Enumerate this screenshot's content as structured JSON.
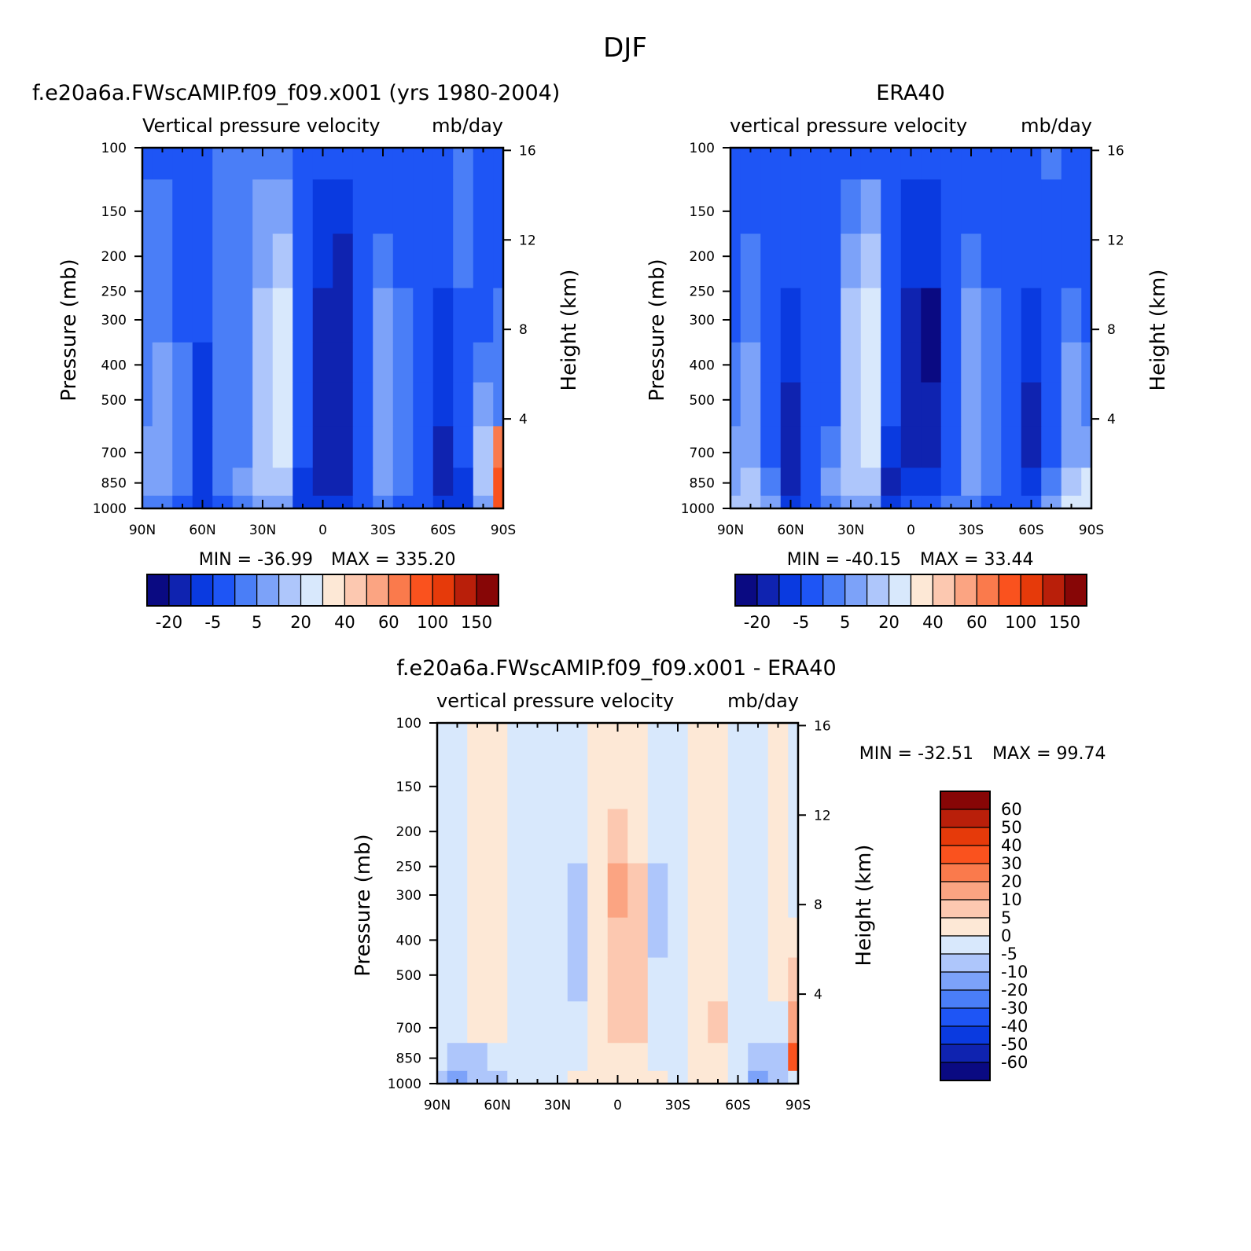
{
  "figure": {
    "title": "DJF"
  },
  "palette": {
    "full": [
      "#0a0a82",
      "#0f23b0",
      "#0a3ae0",
      "#1e55f5",
      "#4a7ef7",
      "#7ca2f9",
      "#aec6fb",
      "#d8e8fc",
      "#fde8d6",
      "#fcc8b0",
      "#fba482",
      "#fa7a4c",
      "#fa521e",
      "#e63a0a",
      "#b91f0a",
      "#870606"
    ],
    "diff": [
      "#0a0a82",
      "#0f23b0",
      "#0a3ae0",
      "#1e55f5",
      "#4a7ef7",
      "#7ca2f9",
      "#aec6fb",
      "#d8e8fc",
      "#fde8d6",
      "#fcc8b0",
      "#fba482",
      "#fa7a4c",
      "#fa521e",
      "#e63a0a",
      "#b91f0a",
      "#870606"
    ]
  },
  "chart_data": [
    {
      "type": "heatmap",
      "id": "model",
      "title": "f.e20a6a.FWscAMIP.f09_f09.x001 (yrs 1980-2004)",
      "subtitle": "Vertical pressure velocity",
      "units": "mb/day",
      "xlabel": "",
      "ylabel": "Pressure (mb)",
      "y2label": "Height (km)",
      "x_ticks": [
        "90N",
        "60N",
        "30N",
        "0",
        "30S",
        "60S",
        "90S"
      ],
      "x_range": [
        90,
        -90
      ],
      "y_ticks": [
        100,
        150,
        200,
        250,
        300,
        400,
        500,
        700,
        850,
        1000
      ],
      "y_scale": "log",
      "y_range": [
        1000,
        100
      ],
      "y2_ticks": [
        16,
        12,
        8,
        4
      ],
      "min_label": "MIN = -36.99",
      "max_label": "MAX = 335.20",
      "colorbar_orientation": "horizontal",
      "colorbar_labels": [
        "-20",
        "-5",
        "5",
        "20",
        "40",
        "60",
        "100",
        "150"
      ],
      "latitudes": [
        90,
        80,
        70,
        60,
        50,
        40,
        30,
        20,
        10,
        0,
        -10,
        -20,
        -30,
        -40,
        -50,
        -60,
        -70,
        -80,
        -90
      ],
      "pressure_levels": [
        100,
        150,
        200,
        300,
        400,
        500,
        700,
        850,
        1000
      ],
      "level_index_rows": [
        [
          3,
          3,
          3,
          3,
          4,
          4,
          4,
          4,
          3,
          3,
          3,
          3,
          3,
          3,
          3,
          3,
          4,
          3,
          3
        ],
        [
          4,
          4,
          3,
          3,
          4,
          4,
          5,
          5,
          3,
          2,
          2,
          3,
          3,
          3,
          3,
          3,
          4,
          3,
          3
        ],
        [
          4,
          4,
          3,
          3,
          4,
          4,
          5,
          6,
          3,
          2,
          1,
          3,
          4,
          3,
          3,
          3,
          4,
          3,
          3
        ],
        [
          4,
          4,
          3,
          3,
          4,
          4,
          6,
          7,
          3,
          1,
          1,
          3,
          5,
          4,
          3,
          2,
          3,
          3,
          4
        ],
        [
          4,
          5,
          4,
          2,
          4,
          4,
          6,
          7,
          3,
          1,
          1,
          3,
          5,
          4,
          3,
          2,
          3,
          4,
          4
        ],
        [
          4,
          5,
          4,
          2,
          4,
          4,
          6,
          7,
          3,
          1,
          1,
          3,
          5,
          4,
          3,
          2,
          3,
          5,
          4
        ],
        [
          5,
          5,
          4,
          2,
          4,
          4,
          6,
          7,
          3,
          1,
          1,
          3,
          5,
          4,
          3,
          1,
          3,
          6,
          11
        ],
        [
          5,
          5,
          4,
          2,
          4,
          5,
          6,
          6,
          2,
          1,
          1,
          3,
          5,
          4,
          3,
          1,
          2,
          6,
          12
        ],
        [
          4,
          4,
          3,
          2,
          3,
          4,
          5,
          5,
          2,
          2,
          2,
          3,
          4,
          3,
          3,
          2,
          2,
          5,
          12
        ]
      ]
    },
    {
      "type": "heatmap",
      "id": "obs",
      "title": "ERA40",
      "subtitle": "vertical pressure velocity",
      "units": "mb/day",
      "xlabel": "",
      "ylabel": "Pressure (mb)",
      "y2label": "Height (km)",
      "x_ticks": [
        "90N",
        "60N",
        "30N",
        "0",
        "30S",
        "60S",
        "90S"
      ],
      "x_range": [
        90,
        -90
      ],
      "y_ticks": [
        100,
        150,
        200,
        250,
        300,
        400,
        500,
        700,
        850,
        1000
      ],
      "y_scale": "log",
      "y_range": [
        1000,
        100
      ],
      "y2_ticks": [
        16,
        12,
        8,
        4
      ],
      "min_label": "MIN = -40.15",
      "max_label": "MAX = 33.44",
      "colorbar_orientation": "horizontal",
      "colorbar_labels": [
        "-20",
        "-5",
        "5",
        "20",
        "40",
        "60",
        "100",
        "150"
      ],
      "latitudes": [
        90,
        80,
        70,
        60,
        50,
        40,
        30,
        20,
        10,
        0,
        -10,
        -20,
        -30,
        -40,
        -50,
        -60,
        -70,
        -80,
        -90
      ],
      "pressure_levels": [
        100,
        150,
        200,
        300,
        400,
        500,
        700,
        850,
        1000
      ],
      "level_index_rows": [
        [
          3,
          3,
          3,
          3,
          3,
          3,
          3,
          3,
          3,
          3,
          3,
          3,
          3,
          3,
          3,
          3,
          4,
          3,
          3
        ],
        [
          3,
          3,
          3,
          3,
          3,
          3,
          4,
          5,
          3,
          2,
          2,
          3,
          3,
          3,
          3,
          3,
          3,
          3,
          3
        ],
        [
          3,
          4,
          3,
          3,
          3,
          3,
          5,
          6,
          3,
          2,
          2,
          3,
          4,
          3,
          3,
          3,
          3,
          3,
          3
        ],
        [
          3,
          4,
          3,
          2,
          3,
          3,
          6,
          7,
          3,
          1,
          0,
          3,
          5,
          4,
          3,
          2,
          3,
          4,
          3
        ],
        [
          4,
          5,
          3,
          2,
          3,
          3,
          6,
          7,
          3,
          1,
          0,
          3,
          5,
          4,
          3,
          2,
          3,
          5,
          4
        ],
        [
          4,
          5,
          3,
          1,
          3,
          3,
          6,
          7,
          3,
          1,
          1,
          3,
          5,
          4,
          3,
          1,
          3,
          5,
          4
        ],
        [
          5,
          5,
          3,
          1,
          3,
          4,
          6,
          7,
          2,
          1,
          1,
          3,
          5,
          4,
          3,
          1,
          3,
          5,
          5
        ],
        [
          5,
          6,
          4,
          1,
          3,
          5,
          6,
          6,
          1,
          2,
          2,
          3,
          5,
          4,
          3,
          2,
          4,
          6,
          7
        ],
        [
          6,
          6,
          5,
          2,
          3,
          4,
          5,
          5,
          2,
          3,
          3,
          4,
          4,
          3,
          3,
          3,
          5,
          7,
          7
        ]
      ]
    },
    {
      "type": "heatmap",
      "id": "diff",
      "title": "f.e20a6a.FWscAMIP.f09_f09.x001 - ERA40",
      "subtitle": "vertical pressure velocity",
      "units": "mb/day",
      "xlabel": "",
      "ylabel": "Pressure (mb)",
      "y2label": "Height (km)",
      "x_ticks": [
        "90N",
        "60N",
        "30N",
        "0",
        "30S",
        "60S",
        "90S"
      ],
      "x_range": [
        90,
        -90
      ],
      "y_ticks": [
        100,
        150,
        200,
        250,
        300,
        400,
        500,
        700,
        850,
        1000
      ],
      "y_scale": "log",
      "y_range": [
        1000,
        100
      ],
      "y2_ticks": [
        16,
        12,
        8,
        4
      ],
      "min_label": "MIN = -32.51",
      "max_label": "MAX = 99.74",
      "colorbar_orientation": "vertical",
      "colorbar_labels": [
        "60",
        "50",
        "40",
        "30",
        "20",
        "10",
        "5",
        "0",
        "-5",
        "-10",
        "-20",
        "-30",
        "-40",
        "-50",
        "-60"
      ],
      "latitudes": [
        90,
        80,
        70,
        60,
        50,
        40,
        30,
        20,
        10,
        0,
        -10,
        -20,
        -30,
        -40,
        -50,
        -60,
        -70,
        -80,
        -90
      ],
      "pressure_levels": [
        100,
        150,
        200,
        300,
        400,
        500,
        700,
        850,
        1000
      ],
      "level_index_rows": [
        [
          7,
          7,
          8,
          8,
          7,
          7,
          7,
          7,
          8,
          8,
          8,
          7,
          7,
          8,
          8,
          7,
          7,
          8,
          7
        ],
        [
          7,
          7,
          8,
          8,
          7,
          7,
          7,
          7,
          8,
          8,
          8,
          7,
          7,
          8,
          8,
          7,
          7,
          8,
          7
        ],
        [
          7,
          7,
          8,
          8,
          7,
          7,
          7,
          7,
          8,
          9,
          8,
          7,
          7,
          8,
          8,
          7,
          7,
          8,
          7
        ],
        [
          7,
          7,
          8,
          8,
          7,
          7,
          7,
          6,
          8,
          10,
          9,
          6,
          7,
          8,
          8,
          7,
          7,
          8,
          7
        ],
        [
          7,
          7,
          8,
          8,
          7,
          7,
          7,
          6,
          8,
          9,
          9,
          6,
          7,
          8,
          8,
          7,
          7,
          8,
          8
        ],
        [
          7,
          7,
          8,
          8,
          7,
          7,
          7,
          6,
          8,
          9,
          9,
          7,
          7,
          8,
          8,
          7,
          7,
          8,
          9
        ],
        [
          7,
          7,
          8,
          8,
          7,
          7,
          7,
          7,
          8,
          9,
          9,
          7,
          7,
          8,
          9,
          7,
          7,
          7,
          10
        ],
        [
          7,
          6,
          6,
          7,
          7,
          7,
          7,
          7,
          8,
          8,
          8,
          7,
          7,
          8,
          8,
          7,
          6,
          6,
          12
        ],
        [
          6,
          5,
          6,
          6,
          7,
          7,
          7,
          8,
          8,
          8,
          8,
          8,
          7,
          8,
          8,
          7,
          5,
          6,
          7
        ]
      ]
    }
  ]
}
